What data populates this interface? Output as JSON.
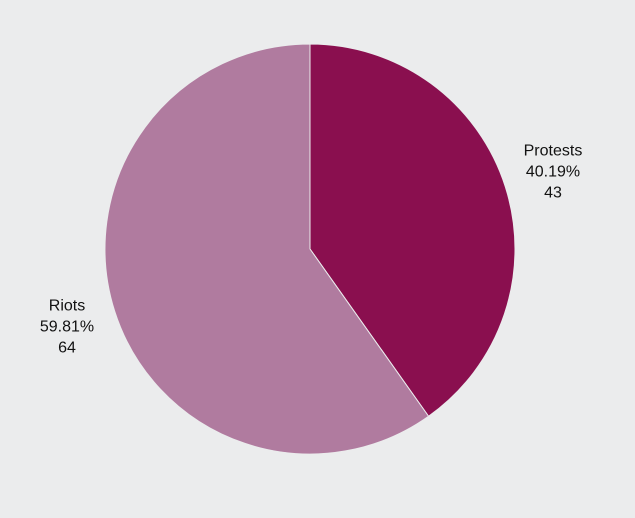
{
  "chart_data": {
    "type": "pie",
    "title": "",
    "start_angle_deg": 0,
    "direction": "clockwise",
    "slices": [
      {
        "label": "Protests",
        "percent_label": "40.19%",
        "value_label": "43",
        "value": 43,
        "color": "#8a0f4f"
      },
      {
        "label": "Riots",
        "percent_label": "59.81%",
        "value_label": "64",
        "value": 64,
        "color": "#b07b9f"
      }
    ],
    "legend": "none",
    "background": "#ebeced"
  }
}
